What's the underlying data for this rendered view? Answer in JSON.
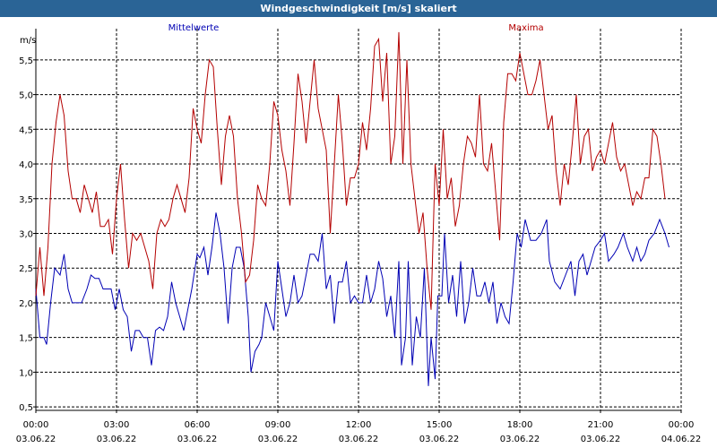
{
  "window": {
    "title": "Windgeschwindigkeit [m/s] skaliert"
  },
  "colors": {
    "mean": "#0000b4",
    "max": "#b40000",
    "grid": "#000000",
    "titlebar": "#2a6496"
  },
  "chart_data": {
    "type": "line",
    "title": "Windgeschwindigkeit [m/s] skaliert",
    "ylabel": "m/s",
    "ylim": [
      0.45,
      5.95
    ],
    "yticks": [
      0.5,
      1.0,
      1.5,
      2.0,
      2.5,
      3.0,
      3.5,
      4.0,
      4.5,
      5.0,
      5.5
    ],
    "ytick_labels": [
      "0,5",
      "1,0",
      "1,5",
      "2,0",
      "2,5",
      "3,0",
      "3,5",
      "4,0",
      "4,5",
      "5,0",
      "5,5"
    ],
    "xlim": [
      0,
      24
    ],
    "xticks": [
      0,
      3,
      6,
      9,
      12,
      15,
      18,
      21,
      24
    ],
    "xtick_time_labels": [
      "00:00",
      "03:00",
      "06:00",
      "09:00",
      "12:00",
      "15:00",
      "18:00",
      "21:00",
      "00:00"
    ],
    "xtick_date_labels": [
      "03.06.22",
      "03.06.22",
      "03.06.22",
      "03.06.22",
      "03.06.22",
      "03.06.22",
      "03.06.22",
      "03.06.22",
      "04.06.22"
    ],
    "grid": true,
    "series": [
      {
        "name": "Mittelwerte",
        "color": "#0000b4",
        "points": [
          [
            0,
            2.2
          ],
          [
            0.15,
            1.5
          ],
          [
            0.3,
            1.5
          ],
          [
            0.4,
            1.4
          ],
          [
            0.55,
            2.0
          ],
          [
            0.7,
            2.5
          ],
          [
            0.9,
            2.4
          ],
          [
            1.05,
            2.7
          ],
          [
            1.2,
            2.2
          ],
          [
            1.35,
            2.0
          ],
          [
            1.55,
            2.0
          ],
          [
            1.7,
            2.0
          ],
          [
            1.9,
            2.2
          ],
          [
            2.05,
            2.4
          ],
          [
            2.2,
            2.35
          ],
          [
            2.35,
            2.35
          ],
          [
            2.5,
            2.2
          ],
          [
            2.65,
            2.2
          ],
          [
            2.8,
            2.2
          ],
          [
            2.95,
            1.9
          ],
          [
            3.1,
            2.2
          ],
          [
            3.25,
            1.9
          ],
          [
            3.4,
            1.8
          ],
          [
            3.55,
            1.3
          ],
          [
            3.7,
            1.6
          ],
          [
            3.85,
            1.6
          ],
          [
            4.0,
            1.5
          ],
          [
            4.15,
            1.5
          ],
          [
            4.3,
            1.1
          ],
          [
            4.45,
            1.6
          ],
          [
            4.6,
            1.65
          ],
          [
            4.75,
            1.6
          ],
          [
            4.9,
            1.8
          ],
          [
            5.05,
            2.3
          ],
          [
            5.2,
            2.0
          ],
          [
            5.35,
            1.8
          ],
          [
            5.5,
            1.6
          ],
          [
            5.65,
            1.9
          ],
          [
            5.8,
            2.2
          ],
          [
            6.0,
            2.7
          ],
          [
            6.1,
            2.65
          ],
          [
            6.25,
            2.8
          ],
          [
            6.4,
            2.4
          ],
          [
            6.55,
            2.8
          ],
          [
            6.7,
            3.3
          ],
          [
            6.85,
            3.0
          ],
          [
            7.0,
            2.5
          ],
          [
            7.15,
            1.7
          ],
          [
            7.3,
            2.5
          ],
          [
            7.45,
            2.8
          ],
          [
            7.6,
            2.8
          ],
          [
            7.75,
            2.5
          ],
          [
            7.9,
            1.8
          ],
          [
            8.0,
            1.0
          ],
          [
            8.15,
            1.3
          ],
          [
            8.3,
            1.4
          ],
          [
            8.4,
            1.5
          ],
          [
            8.55,
            2.0
          ],
          [
            8.7,
            1.8
          ],
          [
            8.85,
            1.6
          ],
          [
            9.0,
            2.6
          ],
          [
            9.15,
            2.2
          ],
          [
            9.3,
            1.8
          ],
          [
            9.45,
            2.0
          ],
          [
            9.6,
            2.4
          ],
          [
            9.75,
            2.0
          ],
          [
            9.9,
            2.1
          ],
          [
            10.05,
            2.4
          ],
          [
            10.2,
            2.7
          ],
          [
            10.35,
            2.7
          ],
          [
            10.5,
            2.6
          ],
          [
            10.65,
            3.0
          ],
          [
            10.8,
            2.2
          ],
          [
            10.95,
            2.4
          ],
          [
            11.1,
            1.7
          ],
          [
            11.25,
            2.3
          ],
          [
            11.4,
            2.3
          ],
          [
            11.55,
            2.6
          ],
          [
            11.7,
            2.0
          ],
          [
            11.85,
            2.1
          ],
          [
            12.0,
            2.0
          ],
          [
            12.15,
            2.0
          ],
          [
            12.3,
            2.4
          ],
          [
            12.45,
            2.0
          ],
          [
            12.6,
            2.2
          ],
          [
            12.75,
            2.6
          ],
          [
            12.9,
            2.35
          ],
          [
            13.05,
            1.8
          ],
          [
            13.2,
            2.1
          ],
          [
            13.35,
            1.5
          ],
          [
            13.5,
            2.6
          ],
          [
            13.6,
            1.1
          ],
          [
            13.75,
            1.5
          ],
          [
            13.85,
            2.6
          ],
          [
            14.0,
            1.1
          ],
          [
            14.15,
            1.8
          ],
          [
            14.3,
            1.5
          ],
          [
            14.45,
            2.5
          ],
          [
            14.6,
            0.8
          ],
          [
            14.7,
            1.5
          ],
          [
            14.85,
            0.9
          ],
          [
            14.95,
            2.1
          ],
          [
            15.1,
            2.1
          ],
          [
            15.2,
            3.0
          ],
          [
            15.35,
            2.0
          ],
          [
            15.5,
            2.4
          ],
          [
            15.65,
            1.8
          ],
          [
            15.8,
            2.6
          ],
          [
            15.95,
            1.7
          ],
          [
            16.1,
            2.0
          ],
          [
            16.25,
            2.5
          ],
          [
            16.4,
            2.1
          ],
          [
            16.55,
            2.1
          ],
          [
            16.7,
            2.3
          ],
          [
            16.85,
            2.0
          ],
          [
            17.0,
            2.3
          ],
          [
            17.15,
            1.7
          ],
          [
            17.3,
            2.0
          ],
          [
            17.45,
            1.8
          ],
          [
            17.6,
            1.7
          ],
          [
            17.75,
            2.3
          ],
          [
            17.9,
            3.0
          ],
          [
            18.05,
            2.8
          ],
          [
            18.2,
            3.2
          ],
          [
            18.4,
            2.9
          ],
          [
            18.6,
            2.9
          ],
          [
            18.8,
            3.0
          ],
          [
            19.0,
            3.2
          ],
          [
            19.1,
            2.6
          ],
          [
            19.3,
            2.3
          ],
          [
            19.5,
            2.2
          ],
          [
            19.7,
            2.4
          ],
          [
            19.9,
            2.6
          ],
          [
            20.05,
            2.1
          ],
          [
            20.2,
            2.6
          ],
          [
            20.35,
            2.7
          ],
          [
            20.5,
            2.4
          ],
          [
            20.65,
            2.6
          ],
          [
            20.8,
            2.8
          ],
          [
            21.0,
            2.9
          ],
          [
            21.15,
            3.0
          ],
          [
            21.3,
            2.6
          ],
          [
            21.5,
            2.7
          ],
          [
            21.65,
            2.8
          ],
          [
            21.85,
            3.0
          ],
          [
            22.0,
            2.8
          ],
          [
            22.2,
            2.6
          ],
          [
            22.35,
            2.8
          ],
          [
            22.5,
            2.6
          ],
          [
            22.65,
            2.7
          ],
          [
            22.8,
            2.9
          ],
          [
            23.0,
            3.0
          ],
          [
            23.2,
            3.2
          ],
          [
            23.4,
            3.0
          ],
          [
            23.55,
            2.8
          ]
        ]
      },
      {
        "name": "Maxima",
        "color": "#b40000",
        "points": [
          [
            0,
            2.1
          ],
          [
            0.15,
            2.8
          ],
          [
            0.3,
            2.1
          ],
          [
            0.45,
            2.8
          ],
          [
            0.6,
            4.0
          ],
          [
            0.75,
            4.6
          ],
          [
            0.9,
            5.0
          ],
          [
            1.05,
            4.7
          ],
          [
            1.2,
            3.9
          ],
          [
            1.35,
            3.5
          ],
          [
            1.5,
            3.5
          ],
          [
            1.65,
            3.3
          ],
          [
            1.8,
            3.7
          ],
          [
            1.95,
            3.5
          ],
          [
            2.1,
            3.3
          ],
          [
            2.25,
            3.6
          ],
          [
            2.4,
            3.1
          ],
          [
            2.55,
            3.1
          ],
          [
            2.7,
            3.2
          ],
          [
            2.85,
            2.7
          ],
          [
            3.0,
            3.5
          ],
          [
            3.15,
            4.0
          ],
          [
            3.3,
            3.2
          ],
          [
            3.45,
            2.5
          ],
          [
            3.6,
            3.0
          ],
          [
            3.75,
            2.9
          ],
          [
            3.9,
            3.0
          ],
          [
            4.05,
            2.8
          ],
          [
            4.2,
            2.6
          ],
          [
            4.35,
            2.2
          ],
          [
            4.5,
            3.0
          ],
          [
            4.65,
            3.2
          ],
          [
            4.8,
            3.1
          ],
          [
            4.95,
            3.2
          ],
          [
            5.1,
            3.5
          ],
          [
            5.25,
            3.7
          ],
          [
            5.4,
            3.5
          ],
          [
            5.55,
            3.3
          ],
          [
            5.7,
            3.8
          ],
          [
            5.85,
            4.8
          ],
          [
            6.0,
            4.5
          ],
          [
            6.15,
            4.3
          ],
          [
            6.3,
            5.0
          ],
          [
            6.45,
            5.5
          ],
          [
            6.6,
            5.4
          ],
          [
            6.75,
            4.5
          ],
          [
            6.9,
            3.7
          ],
          [
            7.05,
            4.4
          ],
          [
            7.2,
            4.7
          ],
          [
            7.35,
            4.4
          ],
          [
            7.5,
            3.5
          ],
          [
            7.65,
            3.0
          ],
          [
            7.8,
            2.3
          ],
          [
            7.95,
            2.4
          ],
          [
            8.1,
            2.9
          ],
          [
            8.25,
            3.7
          ],
          [
            8.4,
            3.5
          ],
          [
            8.55,
            3.4
          ],
          [
            8.7,
            4.0
          ],
          [
            8.85,
            4.9
          ],
          [
            9.0,
            4.7
          ],
          [
            9.15,
            4.2
          ],
          [
            9.3,
            3.9
          ],
          [
            9.45,
            3.4
          ],
          [
            9.6,
            4.3
          ],
          [
            9.75,
            5.3
          ],
          [
            9.9,
            4.9
          ],
          [
            10.05,
            4.3
          ],
          [
            10.2,
            4.9
          ],
          [
            10.35,
            5.5
          ],
          [
            10.5,
            4.8
          ],
          [
            10.65,
            4.5
          ],
          [
            10.8,
            4.2
          ],
          [
            10.95,
            3.0
          ],
          [
            11.1,
            4.0
          ],
          [
            11.25,
            5.0
          ],
          [
            11.4,
            4.3
          ],
          [
            11.55,
            3.4
          ],
          [
            11.7,
            3.8
          ],
          [
            11.85,
            3.8
          ],
          [
            12.0,
            4.0
          ],
          [
            12.15,
            4.6
          ],
          [
            12.3,
            4.2
          ],
          [
            12.45,
            4.8
          ],
          [
            12.6,
            5.7
          ],
          [
            12.75,
            5.8
          ],
          [
            12.9,
            4.9
          ],
          [
            13.05,
            5.6
          ],
          [
            13.2,
            4.0
          ],
          [
            13.35,
            4.4
          ],
          [
            13.5,
            5.9
          ],
          [
            13.65,
            4.0
          ],
          [
            13.8,
            5.5
          ],
          [
            13.95,
            4.0
          ],
          [
            14.1,
            3.5
          ],
          [
            14.25,
            3.0
          ],
          [
            14.4,
            3.3
          ],
          [
            14.55,
            2.5
          ],
          [
            14.7,
            1.9
          ],
          [
            14.85,
            4.0
          ],
          [
            15.0,
            3.4
          ],
          [
            15.15,
            4.5
          ],
          [
            15.3,
            3.5
          ],
          [
            15.45,
            3.8
          ],
          [
            15.6,
            3.1
          ],
          [
            15.75,
            3.4
          ],
          [
            15.9,
            4.0
          ],
          [
            16.05,
            4.4
          ],
          [
            16.2,
            4.3
          ],
          [
            16.35,
            4.1
          ],
          [
            16.5,
            5.0
          ],
          [
            16.65,
            4.0
          ],
          [
            16.8,
            3.9
          ],
          [
            16.95,
            4.3
          ],
          [
            17.1,
            3.6
          ],
          [
            17.25,
            2.9
          ],
          [
            17.4,
            4.6
          ],
          [
            17.55,
            5.3
          ],
          [
            17.7,
            5.3
          ],
          [
            17.85,
            5.2
          ],
          [
            18.0,
            5.6
          ],
          [
            18.15,
            5.3
          ],
          [
            18.3,
            5.0
          ],
          [
            18.45,
            5.0
          ],
          [
            18.6,
            5.2
          ],
          [
            18.75,
            5.5
          ],
          [
            18.9,
            5.0
          ],
          [
            19.05,
            4.5
          ],
          [
            19.2,
            4.7
          ],
          [
            19.35,
            3.9
          ],
          [
            19.5,
            3.4
          ],
          [
            19.65,
            4.0
          ],
          [
            19.8,
            3.7
          ],
          [
            19.95,
            4.3
          ],
          [
            20.1,
            5.0
          ],
          [
            20.25,
            4.0
          ],
          [
            20.4,
            4.4
          ],
          [
            20.55,
            4.5
          ],
          [
            20.7,
            3.9
          ],
          [
            20.85,
            4.1
          ],
          [
            21.0,
            4.2
          ],
          [
            21.15,
            4.0
          ],
          [
            21.3,
            4.3
          ],
          [
            21.45,
            4.6
          ],
          [
            21.6,
            4.1
          ],
          [
            21.75,
            3.9
          ],
          [
            21.9,
            4.0
          ],
          [
            22.05,
            3.7
          ],
          [
            22.2,
            3.4
          ],
          [
            22.35,
            3.6
          ],
          [
            22.5,
            3.5
          ],
          [
            22.65,
            3.8
          ],
          [
            22.8,
            3.8
          ],
          [
            22.95,
            4.5
          ],
          [
            23.1,
            4.4
          ],
          [
            23.25,
            4.0
          ],
          [
            23.4,
            3.5
          ]
        ]
      }
    ]
  }
}
